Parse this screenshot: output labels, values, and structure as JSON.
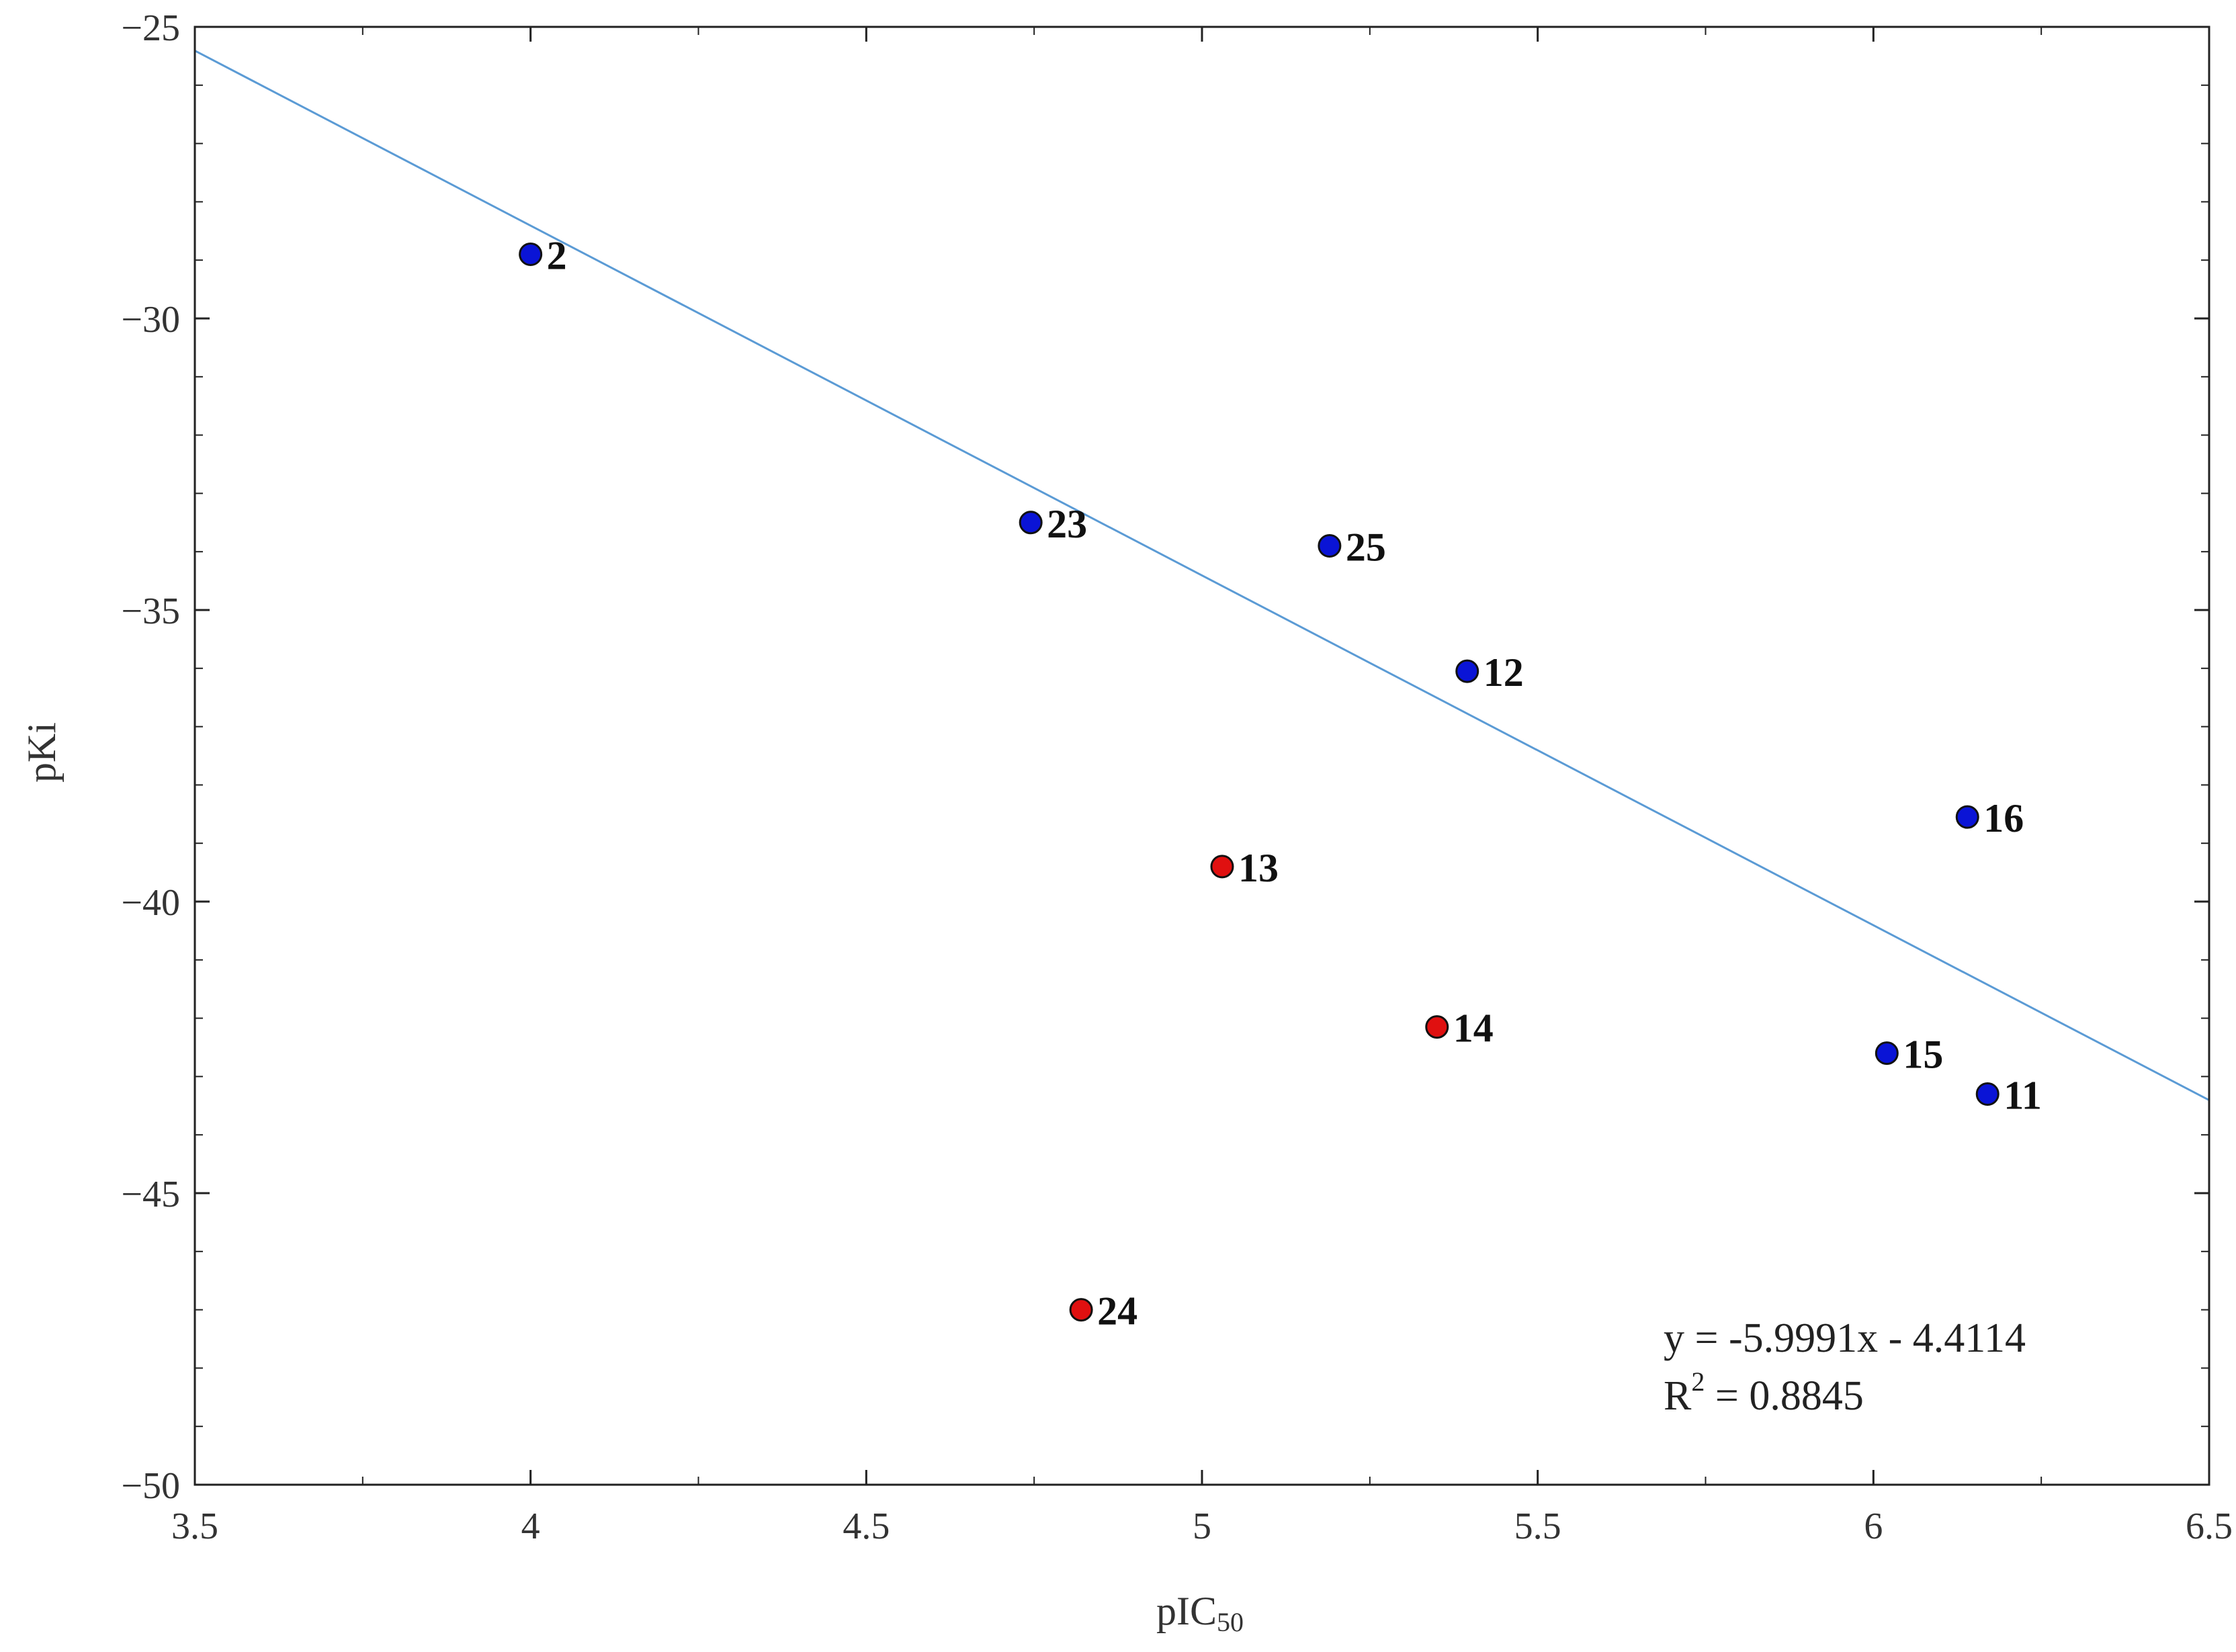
{
  "chart_data": {
    "type": "scatter",
    "title": "",
    "xlabel": "pIC",
    "xlabel_sub": "50",
    "ylabel": "pKi",
    "xlim": [
      3.5,
      6.5
    ],
    "ylim": [
      -50,
      -25
    ],
    "x_ticks": [
      3.5,
      4,
      4.5,
      5,
      5.5,
      6,
      6.5
    ],
    "x_tick_labels": [
      "3.5",
      "4",
      "4.5",
      "5",
      "5.5",
      "6",
      "6.5"
    ],
    "y_ticks": [
      -25,
      -30,
      -35,
      -40,
      -45,
      -50
    ],
    "y_tick_labels": [
      "−25",
      "−30",
      "−35",
      "−40",
      "−45",
      "−50"
    ],
    "grid": false,
    "series": [
      {
        "name": "blue",
        "color": "#0a14d6",
        "points": [
          {
            "label": "2",
            "x": 4.0,
            "y": -28.9
          },
          {
            "label": "23",
            "x": 4.745,
            "y": -33.5
          },
          {
            "label": "25",
            "x": 5.19,
            "y": -33.9
          },
          {
            "label": "12",
            "x": 5.395,
            "y": -36.05
          },
          {
            "label": "16",
            "x": 6.14,
            "y": -38.55
          },
          {
            "label": "15",
            "x": 6.02,
            "y": -42.6
          },
          {
            "label": "11",
            "x": 6.17,
            "y": -43.3
          }
        ]
      },
      {
        "name": "red",
        "color": "#e01010",
        "points": [
          {
            "label": "13",
            "x": 5.03,
            "y": -39.4
          },
          {
            "label": "14",
            "x": 5.35,
            "y": -42.15
          },
          {
            "label": "24",
            "x": 4.82,
            "y": -47.0
          }
        ]
      }
    ],
    "trendline": {
      "slope": -5.9991,
      "intercept": -4.4114,
      "color": "#5b9bd5",
      "equation": "y = -5.9991x - 4.4114",
      "r2_prefix": "R",
      "r2_sup": "2",
      "r2_suffix": " = 0.8845"
    }
  }
}
